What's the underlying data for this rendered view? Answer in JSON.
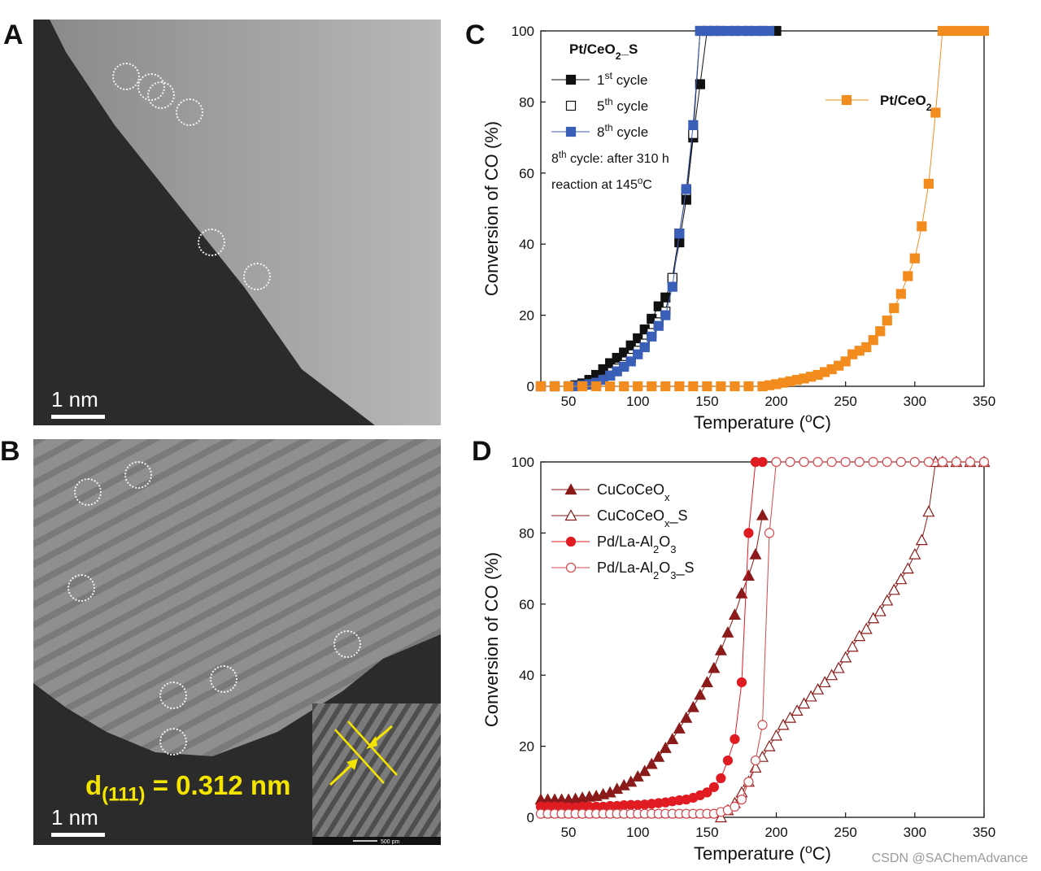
{
  "panels": {
    "a": {
      "letter": "A",
      "scale_label": "1 nm"
    },
    "b": {
      "letter": "B",
      "scale_label": "1 nm",
      "d_label_main": "d",
      "d_label_sub": "(111)",
      "d_label_value": " = 0.312 nm",
      "inset_scale": "500 pm"
    },
    "c": {
      "letter": "C"
    },
    "d": {
      "letter": "D"
    }
  },
  "watermark": "CSDN @SAChemAdvance",
  "colors": {
    "black": "#111111",
    "blue": "#3a5fb8",
    "orange": "#f28c1e",
    "darkred": "#8b1a1a",
    "red": "#e01b22",
    "lightred": "#d4474d"
  },
  "chart_data": [
    {
      "id": "C",
      "type": "line",
      "xlabel": "Temperature (",
      "xlabel_sup": "o",
      "xlabel_end": "C)",
      "ylabel": "Conversion of CO (%)",
      "xlim": [
        30,
        350
      ],
      "ylim": [
        0,
        100
      ],
      "xticks": [
        50,
        100,
        150,
        200,
        250,
        300,
        350
      ],
      "yticks": [
        0,
        20,
        40,
        60,
        80,
        100
      ],
      "legend_title": "Pt/CeO",
      "legend_title_sub": "2",
      "legend_title_end": "_S",
      "annotation_line1": "8",
      "annotation_line1_sup": "th",
      "annotation_line1_end": " cycle: after 310 h",
      "annotation_line2": "reaction at 145",
      "annotation_line2_sup": "o",
      "annotation_line2_end": "C",
      "series": [
        {
          "name": "1",
          "sup": "st",
          "suffix": " cycle",
          "marker": "square-filled",
          "color": "#111111",
          "x": [
            30,
            40,
            50,
            55,
            60,
            65,
            70,
            75,
            80,
            85,
            90,
            95,
            100,
            105,
            110,
            115,
            120,
            125,
            130,
            135,
            140,
            145,
            150,
            155,
            160,
            170,
            180,
            190,
            200
          ],
          "y": [
            0,
            0,
            0,
            0.3,
            0.8,
            1.8,
            3.2,
            4.8,
            6.5,
            8,
            9.5,
            11.5,
            13.5,
            16,
            19,
            22.5,
            25,
            30,
            40.5,
            52.5,
            70,
            85,
            100,
            100,
            100,
            100,
            100,
            100,
            100
          ]
        },
        {
          "name": "5",
          "sup": "th",
          "suffix": " cycle",
          "marker": "square-open",
          "color": "#111111",
          "x": [
            60,
            65,
            70,
            75,
            80,
            85,
            90,
            95,
            100,
            105,
            110,
            115,
            120,
            125,
            130,
            135,
            140,
            145
          ],
          "y": [
            0.2,
            0.5,
            1,
            2,
            3,
            5,
            6,
            8,
            10,
            12,
            15,
            18,
            21,
            30.5,
            43,
            55,
            71,
            100
          ]
        },
        {
          "name": "8",
          "sup": "th",
          "suffix": " cycle",
          "marker": "square-filled",
          "color": "#3a5fb8",
          "x": [
            30,
            40,
            50,
            55,
            60,
            65,
            70,
            75,
            80,
            85,
            90,
            95,
            100,
            105,
            110,
            115,
            120,
            125,
            130,
            135,
            140,
            145,
            150,
            155,
            160,
            165,
            170,
            175,
            180,
            185,
            190,
            195
          ],
          "y": [
            0,
            0,
            0,
            0,
            0.3,
            0.6,
            1,
            1.8,
            3,
            4.2,
            5.5,
            7,
            9,
            11,
            14,
            17,
            20,
            28,
            43,
            55.5,
            73.5,
            100,
            100,
            100,
            100,
            100,
            100,
            100,
            100,
            100,
            100,
            100
          ]
        },
        {
          "name": "Pt/CeO",
          "sub": "2",
          "suffix": "",
          "marker": "square-filled",
          "color": "#f28c1e",
          "x": [
            30,
            40,
            50,
            60,
            70,
            80,
            90,
            100,
            110,
            120,
            130,
            140,
            150,
            160,
            170,
            180,
            190,
            195,
            200,
            205,
            210,
            215,
            220,
            225,
            230,
            235,
            240,
            245,
            250,
            255,
            260,
            265,
            270,
            275,
            280,
            285,
            290,
            295,
            300,
            305,
            310,
            315,
            320,
            325,
            330,
            335,
            340,
            345,
            350
          ],
          "y": [
            0,
            0,
            0,
            0,
            0,
            0,
            0,
            0,
            0,
            0,
            0,
            0,
            0,
            0,
            0,
            0,
            0,
            0.3,
            0.6,
            1,
            1.4,
            1.8,
            2.2,
            2.7,
            3.2,
            4,
            4.8,
            5.8,
            7,
            9,
            10,
            11,
            13,
            15.5,
            18.5,
            22,
            26,
            31,
            36,
            45,
            57,
            77,
            100,
            100,
            100,
            100,
            100,
            100,
            100
          ]
        }
      ]
    },
    {
      "id": "D",
      "type": "line",
      "xlabel": "Temperature (",
      "xlabel_sup": "o",
      "xlabel_end": "C)",
      "ylabel": "Conversion of CO (%)",
      "xlim": [
        30,
        350
      ],
      "ylim": [
        0,
        100
      ],
      "xticks": [
        50,
        100,
        150,
        200,
        250,
        300,
        350
      ],
      "yticks": [
        0,
        20,
        40,
        60,
        80,
        100
      ],
      "series": [
        {
          "name": "CuCoCeO",
          "sub": "x",
          "suffix": "",
          "marker": "triangle-filled",
          "color": "#8b1a1a",
          "x": [
            30,
            35,
            40,
            45,
            50,
            55,
            60,
            65,
            70,
            75,
            80,
            85,
            90,
            95,
            100,
            105,
            110,
            115,
            120,
            125,
            130,
            135,
            140,
            145,
            150,
            155,
            160,
            165,
            170,
            175,
            180,
            185,
            190
          ],
          "y": [
            5,
            5,
            5,
            5,
            5,
            5.2,
            5.5,
            5.8,
            6,
            6.5,
            7,
            8,
            9,
            10,
            11.5,
            13,
            15,
            17,
            19.5,
            22,
            25,
            28,
            31,
            34.5,
            38,
            42,
            47,
            52,
            57,
            63,
            68,
            74,
            85
          ]
        },
        {
          "name": "CuCoCeO",
          "sub": "x",
          "suffix": "_S",
          "marker": "triangle-open",
          "color": "#8b1a1a",
          "x": [
            160,
            165,
            170,
            175,
            180,
            185,
            190,
            195,
            200,
            205,
            210,
            215,
            220,
            225,
            230,
            235,
            240,
            245,
            250,
            255,
            260,
            265,
            270,
            275,
            280,
            285,
            290,
            295,
            300,
            305,
            310,
            315,
            320,
            330,
            340,
            350
          ],
          "y": [
            0,
            2,
            4,
            7,
            10,
            14,
            17,
            20,
            23,
            26,
            28,
            30,
            32,
            34,
            36,
            38,
            40,
            42,
            45,
            48,
            51,
            53,
            56,
            58,
            61,
            64,
            67,
            70,
            74,
            78,
            86,
            100,
            100,
            100,
            100,
            100
          ]
        },
        {
          "name": "Pd/La-Al",
          "sub": "2",
          "mid": "O",
          "sub2": "3",
          "suffix": "",
          "marker": "circle-filled",
          "color": "#e01b22",
          "x": [
            30,
            35,
            40,
            45,
            50,
            55,
            60,
            65,
            70,
            75,
            80,
            85,
            90,
            95,
            100,
            105,
            110,
            115,
            120,
            125,
            130,
            135,
            140,
            145,
            150,
            155,
            160,
            165,
            170,
            175,
            180,
            185,
            190
          ],
          "y": [
            3,
            3,
            3,
            3,
            2.8,
            2.8,
            3,
            3,
            3,
            3,
            3.2,
            3.2,
            3.4,
            3.5,
            3.5,
            3.6,
            3.8,
            4,
            4.2,
            4.5,
            4.8,
            5,
            5.5,
            6.2,
            7,
            8.5,
            11,
            16,
            22,
            38,
            80,
            100,
            100
          ]
        },
        {
          "name": "Pd/La-Al",
          "sub": "2",
          "mid": "O",
          "sub2": "3",
          "suffix": "_S",
          "marker": "circle-open",
          "color": "#d4474d",
          "x": [
            30,
            35,
            40,
            45,
            50,
            55,
            60,
            65,
            70,
            75,
            80,
            85,
            90,
            95,
            100,
            105,
            110,
            115,
            120,
            125,
            130,
            135,
            140,
            145,
            150,
            155,
            160,
            165,
            170,
            175,
            180,
            185,
            190,
            195,
            200,
            210,
            220,
            230,
            240,
            250,
            260,
            270,
            280,
            290,
            300,
            310,
            320,
            330,
            340,
            350
          ],
          "y": [
            1,
            1,
            1,
            1,
            1,
            1,
            1,
            1,
            1,
            1,
            1,
            1,
            1,
            1,
            1,
            1,
            1,
            1,
            1,
            1,
            1,
            1,
            1,
            1,
            1,
            1,
            1.5,
            2,
            3,
            5,
            10,
            16,
            26,
            80,
            100,
            100,
            100,
            100,
            100,
            100,
            100,
            100,
            100,
            100,
            100,
            100,
            100,
            100,
            100,
            100
          ]
        }
      ]
    }
  ]
}
